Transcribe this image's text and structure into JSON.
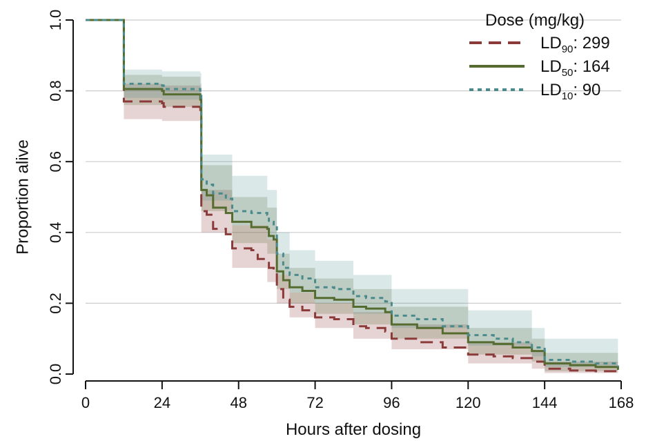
{
  "chart_data": {
    "type": "line",
    "xlabel": "Hours after dosing",
    "ylabel": "Proportion alive",
    "xlim": [
      0,
      168
    ],
    "ylim": [
      0,
      1
    ],
    "x_ticks": [
      "0",
      "24",
      "48",
      "72",
      "96",
      "120",
      "144",
      "168"
    ],
    "y_ticks": [
      "0.0",
      "0.2",
      "0.4",
      "0.6",
      "0.8",
      "1.0"
    ],
    "grid": "horizontal",
    "legend": {
      "title": "Dose (mg/kg)",
      "placement": "top-right"
    },
    "series": [
      {
        "name": "LD90: 299",
        "label_main": "LD",
        "label_sub": "90",
        "label_value": ": 299",
        "color": "#8b3a3a",
        "dash": "dashed",
        "points": [
          [
            0,
            1.0
          ],
          [
            9,
            1.0
          ],
          [
            12,
            0.77
          ],
          [
            24,
            0.765
          ],
          [
            24.5,
            0.755
          ],
          [
            36,
            0.74
          ],
          [
            36.3,
            0.46
          ],
          [
            38,
            0.45
          ],
          [
            40,
            0.41
          ],
          [
            44,
            0.395
          ],
          [
            46,
            0.355
          ],
          [
            52,
            0.35
          ],
          [
            54,
            0.325
          ],
          [
            57,
            0.32
          ],
          [
            57.5,
            0.3
          ],
          [
            59,
            0.29
          ],
          [
            60,
            0.24
          ],
          [
            62,
            0.21
          ],
          [
            64,
            0.19
          ],
          [
            68,
            0.18
          ],
          [
            72,
            0.16
          ],
          [
            78,
            0.155
          ],
          [
            82,
            0.155
          ],
          [
            84,
            0.135
          ],
          [
            88,
            0.13
          ],
          [
            94,
            0.12
          ],
          [
            96,
            0.1
          ],
          [
            104,
            0.09
          ],
          [
            112,
            0.075
          ],
          [
            120,
            0.055
          ],
          [
            128,
            0.05
          ],
          [
            134,
            0.045
          ],
          [
            140,
            0.035
          ],
          [
            144,
            0.015
          ],
          [
            152,
            0.01
          ],
          [
            160,
            0.008
          ],
          [
            167,
            0.006
          ]
        ],
        "ci_upper": [
          [
            0,
            1.0
          ],
          [
            9,
            1.0
          ],
          [
            12,
            0.82
          ],
          [
            24,
            0.815
          ],
          [
            36,
            0.79
          ],
          [
            36.3,
            0.52
          ],
          [
            46,
            0.42
          ],
          [
            57,
            0.38
          ],
          [
            60,
            0.28
          ],
          [
            64,
            0.23
          ],
          [
            72,
            0.2
          ],
          [
            84,
            0.175
          ],
          [
            96,
            0.14
          ],
          [
            120,
            0.09
          ],
          [
            140,
            0.065
          ],
          [
            144,
            0.035
          ],
          [
            167,
            0.03
          ]
        ],
        "ci_lower": [
          [
            0,
            1.0
          ],
          [
            9,
            1.0
          ],
          [
            12,
            0.72
          ],
          [
            24,
            0.715
          ],
          [
            36,
            0.69
          ],
          [
            36.3,
            0.4
          ],
          [
            46,
            0.3
          ],
          [
            57,
            0.26
          ],
          [
            60,
            0.2
          ],
          [
            64,
            0.16
          ],
          [
            72,
            0.13
          ],
          [
            84,
            0.1
          ],
          [
            96,
            0.07
          ],
          [
            120,
            0.03
          ],
          [
            140,
            0.015
          ],
          [
            144,
            0.003
          ],
          [
            167,
            0.0
          ]
        ]
      },
      {
        "name": "LD50: 164",
        "label_main": "LD",
        "label_sub": "50",
        "label_value": ": 164",
        "color": "#556b2f",
        "dash": "solid",
        "points": [
          [
            0,
            1.0
          ],
          [
            9,
            1.0
          ],
          [
            12,
            0.805
          ],
          [
            24,
            0.8
          ],
          [
            24.5,
            0.79
          ],
          [
            36,
            0.775
          ],
          [
            36.3,
            0.52
          ],
          [
            38,
            0.505
          ],
          [
            40,
            0.47
          ],
          [
            44,
            0.455
          ],
          [
            46,
            0.43
          ],
          [
            52,
            0.415
          ],
          [
            57,
            0.41
          ],
          [
            57.5,
            0.39
          ],
          [
            59,
            0.38
          ],
          [
            60,
            0.29
          ],
          [
            62,
            0.265
          ],
          [
            64,
            0.245
          ],
          [
            68,
            0.235
          ],
          [
            72,
            0.215
          ],
          [
            78,
            0.21
          ],
          [
            82,
            0.21
          ],
          [
            84,
            0.19
          ],
          [
            88,
            0.185
          ],
          [
            94,
            0.175
          ],
          [
            96,
            0.14
          ],
          [
            104,
            0.13
          ],
          [
            112,
            0.115
          ],
          [
            120,
            0.09
          ],
          [
            128,
            0.085
          ],
          [
            134,
            0.075
          ],
          [
            140,
            0.065
          ],
          [
            144,
            0.03
          ],
          [
            152,
            0.025
          ],
          [
            160,
            0.02
          ],
          [
            167,
            0.012
          ]
        ],
        "ci_upper": [
          [
            0,
            1.0
          ],
          [
            9,
            1.0
          ],
          [
            12,
            0.845
          ],
          [
            24,
            0.84
          ],
          [
            36,
            0.82
          ],
          [
            36.3,
            0.59
          ],
          [
            46,
            0.5
          ],
          [
            57,
            0.47
          ],
          [
            60,
            0.34
          ],
          [
            64,
            0.3
          ],
          [
            72,
            0.27
          ],
          [
            84,
            0.24
          ],
          [
            96,
            0.19
          ],
          [
            120,
            0.13
          ],
          [
            140,
            0.1
          ],
          [
            144,
            0.06
          ],
          [
            167,
            0.05
          ]
        ],
        "ci_lower": [
          [
            0,
            1.0
          ],
          [
            9,
            1.0
          ],
          [
            12,
            0.76
          ],
          [
            24,
            0.755
          ],
          [
            36,
            0.73
          ],
          [
            36.3,
            0.46
          ],
          [
            46,
            0.37
          ],
          [
            57,
            0.34
          ],
          [
            60,
            0.24
          ],
          [
            64,
            0.2
          ],
          [
            72,
            0.17
          ],
          [
            84,
            0.14
          ],
          [
            96,
            0.1
          ],
          [
            120,
            0.055
          ],
          [
            140,
            0.035
          ],
          [
            144,
            0.008
          ],
          [
            167,
            0.0
          ]
        ]
      },
      {
        "name": "LD10: 90",
        "label_main": "LD",
        "label_sub": "10",
        "label_value": ": 90",
        "color": "#4a8a8a",
        "dash": "dotted",
        "points": [
          [
            0,
            1.0
          ],
          [
            9,
            1.0
          ],
          [
            12,
            0.82
          ],
          [
            24,
            0.815
          ],
          [
            24.5,
            0.805
          ],
          [
            36,
            0.795
          ],
          [
            36.3,
            0.55
          ],
          [
            38,
            0.535
          ],
          [
            40,
            0.51
          ],
          [
            44,
            0.495
          ],
          [
            46,
            0.46
          ],
          [
            52,
            0.455
          ],
          [
            57,
            0.45
          ],
          [
            57.5,
            0.43
          ],
          [
            59,
            0.42
          ],
          [
            60,
            0.34
          ],
          [
            62,
            0.3
          ],
          [
            64,
            0.28
          ],
          [
            68,
            0.27
          ],
          [
            72,
            0.245
          ],
          [
            78,
            0.24
          ],
          [
            82,
            0.24
          ],
          [
            84,
            0.22
          ],
          [
            88,
            0.215
          ],
          [
            94,
            0.205
          ],
          [
            96,
            0.165
          ],
          [
            104,
            0.155
          ],
          [
            112,
            0.135
          ],
          [
            120,
            0.11
          ],
          [
            128,
            0.1
          ],
          [
            134,
            0.09
          ],
          [
            140,
            0.075
          ],
          [
            144,
            0.04
          ],
          [
            152,
            0.035
          ],
          [
            160,
            0.03
          ],
          [
            167,
            0.02
          ]
        ],
        "ci_upper": [
          [
            0,
            1.0
          ],
          [
            9,
            1.0
          ],
          [
            12,
            0.86
          ],
          [
            24,
            0.855
          ],
          [
            36,
            0.85
          ],
          [
            36.3,
            0.62
          ],
          [
            46,
            0.56
          ],
          [
            57,
            0.52
          ],
          [
            60,
            0.4
          ],
          [
            64,
            0.35
          ],
          [
            72,
            0.32
          ],
          [
            84,
            0.28
          ],
          [
            96,
            0.24
          ],
          [
            120,
            0.18
          ],
          [
            140,
            0.13
          ],
          [
            144,
            0.1
          ],
          [
            167,
            0.095
          ]
        ],
        "ci_lower": [
          [
            0,
            1.0
          ],
          [
            9,
            1.0
          ],
          [
            12,
            0.78
          ],
          [
            24,
            0.775
          ],
          [
            36,
            0.76
          ],
          [
            36.3,
            0.49
          ],
          [
            46,
            0.42
          ],
          [
            57,
            0.38
          ],
          [
            60,
            0.28
          ],
          [
            64,
            0.23
          ],
          [
            72,
            0.2
          ],
          [
            84,
            0.17
          ],
          [
            96,
            0.13
          ],
          [
            120,
            0.08
          ],
          [
            140,
            0.05
          ],
          [
            144,
            0.02
          ],
          [
            167,
            0.01
          ]
        ]
      }
    ]
  }
}
